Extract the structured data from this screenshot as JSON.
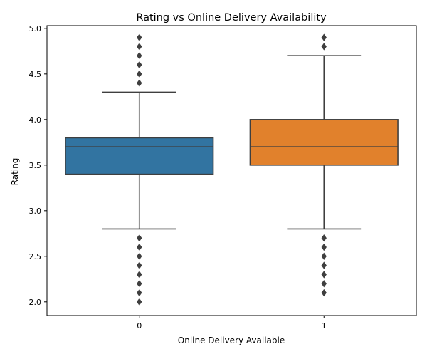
{
  "chart_data": {
    "type": "boxplot",
    "title": "Rating vs Online Delivery Availability",
    "xlabel": "Online Delivery Available",
    "ylabel": "Rating",
    "categories": [
      "0",
      "1"
    ],
    "ylim": [
      1.85,
      5.03
    ],
    "yticks": [
      2.0,
      2.5,
      3.0,
      3.5,
      4.0,
      4.5,
      5.0
    ],
    "ytick_labels": [
      "2.0",
      "2.5",
      "3.0",
      "3.5",
      "4.0",
      "4.5",
      "5.0"
    ],
    "grid": false,
    "legend": "none",
    "series": [
      {
        "category": "0",
        "color": "#3274a1",
        "whisker_low": 2.8,
        "q1": 3.4,
        "median": 3.7,
        "q3": 3.8,
        "whisker_high": 4.3,
        "outliers": [
          2.0,
          2.1,
          2.2,
          2.3,
          2.4,
          2.5,
          2.6,
          2.7,
          4.4,
          4.5,
          4.6,
          4.7,
          4.8,
          4.9
        ]
      },
      {
        "category": "1",
        "color": "#e1812c",
        "whisker_low": 2.8,
        "q1": 3.5,
        "median": 3.7,
        "q3": 4.0,
        "whisker_high": 4.7,
        "outliers": [
          2.1,
          2.2,
          2.3,
          2.4,
          2.5,
          2.6,
          2.7,
          4.8,
          4.9
        ]
      }
    ]
  }
}
